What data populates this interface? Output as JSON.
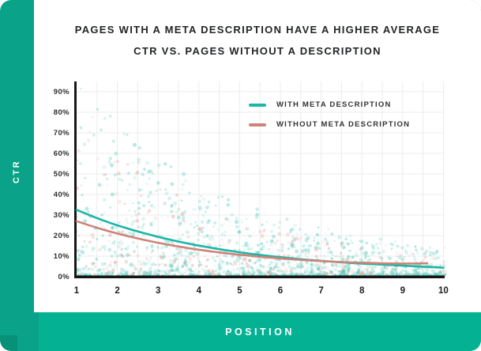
{
  "title": {
    "line1": "PAGES WITH A META DESCRIPTION HAVE A HIGHER AVERAGE",
    "line2": "CTR VS. PAGES WITHOUT A DESCRIPTION"
  },
  "side_bar": {
    "label": "CTR"
  },
  "bottom_bar": {
    "label": "POSITION"
  },
  "colors": {
    "sidebar_teal": "#0AA289",
    "bottom_bar_teal": "#04B293",
    "corner_accent": "#079178",
    "card_background": "#FFFFFF",
    "title_text": "#222426",
    "grid_line": "#ECECEC",
    "axis_line": "#161616",
    "with_meta_line": "#1CB6A6",
    "without_meta_line": "#CE8379",
    "with_meta_dot": "#41C6B6",
    "without_meta_dot": "#DE948B"
  },
  "chart_data": {
    "type": "scatter",
    "title": "PAGES WITH A META DESCRIPTION HAVE A HIGHER AVERAGE CTR VS. PAGES WITHOUT A DESCRIPTION",
    "xlabel": "POSITION",
    "ylabel": "CTR",
    "xlim": [
      1,
      10
    ],
    "ylim": [
      0,
      95
    ],
    "grid": true,
    "x_ticks": [
      1,
      2,
      3,
      4,
      5,
      6,
      7,
      8,
      9,
      10
    ],
    "y_ticks": [
      {
        "value": 90,
        "label": "90%"
      },
      {
        "value": 80,
        "label": "80%"
      },
      {
        "value": 70,
        "label": "70%"
      },
      {
        "value": 60,
        "label": "60%"
      },
      {
        "value": 50,
        "label": "50%"
      },
      {
        "value": 40,
        "label": "40%"
      },
      {
        "value": 30,
        "label": "30%"
      },
      {
        "value": 20,
        "label": "20%"
      },
      {
        "value": 10,
        "label": "10%"
      },
      {
        "value": 0,
        "label": "0%"
      }
    ],
    "legend": {
      "position": "top-right-inside",
      "entries": [
        {
          "label": "WITH META DESCRIPTION",
          "color": "#1CB6A6"
        },
        {
          "label": "WITHOUT META DESCRIPTION",
          "color": "#CE8379"
        }
      ]
    },
    "series": [
      {
        "name": "WITH META DESCRIPTION",
        "role": "average-ctr-trend",
        "color": "#1CB6A6",
        "x": [
          1,
          1.5,
          2,
          2.5,
          3,
          3.5,
          4,
          4.5,
          5,
          5.5,
          6,
          6.5,
          7,
          7.5,
          8,
          8.5,
          9,
          9.5,
          10
        ],
        "y": [
          32.5,
          28.5,
          25,
          22,
          19.4,
          17.1,
          15.1,
          13.4,
          11.9,
          10.6,
          9.5,
          8.5,
          7.7,
          7.0,
          6.4,
          5.9,
          5.4,
          4.9,
          4.4
        ]
      },
      {
        "name": "WITHOUT META DESCRIPTION",
        "role": "average-ctr-trend",
        "color": "#CE8379",
        "x": [
          1,
          1.5,
          2,
          2.5,
          3,
          3.5,
          4,
          4.5,
          5,
          5.5,
          6,
          6.5,
          7,
          7.5,
          8,
          8.5,
          9,
          9.5,
          9.6
        ],
        "y": [
          27,
          23.8,
          21,
          18.6,
          16.5,
          14.7,
          13.1,
          11.8,
          10.7,
          9.7,
          8.9,
          8.2,
          7.6,
          7.1,
          6.8,
          6.5,
          6.4,
          6.45,
          6.5
        ]
      }
    ],
    "scatter_cloud": {
      "description": "dense translucent sample points; density concentrated below ~15% CTR and toward position 1, upper reach decays toward position 10",
      "seed": 7,
      "groups": [
        {
          "name": "with-meta-points",
          "color": "#41C6B6",
          "count": 1350,
          "y_floor": 7,
          "y_max_at_pos1": 96,
          "decay": 3.6
        },
        {
          "name": "without-meta-points",
          "color": "#DE948B",
          "count": 400,
          "y_floor": 6,
          "y_max_at_pos1": 78,
          "decay": 3.3
        }
      ]
    }
  }
}
